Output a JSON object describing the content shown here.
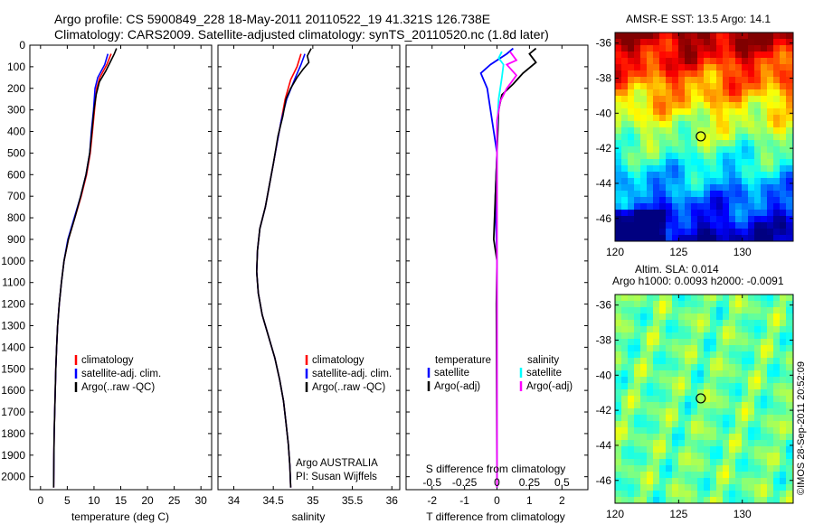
{
  "header": {
    "line1": "Argo profile: CS 5900849_228 18-May-2011 20110522_19 41.321S 126.738E",
    "line2": "Climatology: CARS2009. Satellite-adjusted climatology: synTS_20110520.nc (1.8d later)"
  },
  "colors": {
    "climatology": "#ff0000",
    "satellite": "#0000ff",
    "argo": "#000000",
    "sal_satellite": "#00ffff",
    "sal_argo": "#ff00ff"
  },
  "depth_axis": {
    "ticks": [
      0,
      100,
      200,
      300,
      400,
      500,
      600,
      700,
      800,
      900,
      1000,
      1100,
      1200,
      1300,
      1400,
      1500,
      1600,
      1700,
      1800,
      1900,
      2000
    ],
    "range": [
      0,
      2060
    ]
  },
  "chart_data": [
    {
      "type": "line",
      "xlabel": "temperature (deg C)",
      "xlim": [
        -2,
        32
      ],
      "xticks": [
        0,
        5,
        10,
        15,
        20,
        25,
        30
      ],
      "legend": [
        "climatology",
        "satellite-adj. clim.",
        "Argo(..raw -QC)"
      ],
      "series": [
        {
          "name": "climatology",
          "points": [
            [
              13.2,
              40
            ],
            [
              12.4,
              90
            ],
            [
              11.1,
              150
            ],
            [
              10.5,
              200
            ],
            [
              10.1,
              300
            ],
            [
              9.7,
              400
            ],
            [
              9.3,
              500
            ],
            [
              8.6,
              600
            ],
            [
              7.6,
              700
            ],
            [
              6.4,
              800
            ],
            [
              5.2,
              900
            ],
            [
              4.4,
              1000
            ],
            [
              3.9,
              1100
            ],
            [
              3.5,
              1200
            ],
            [
              3.2,
              1300
            ],
            [
              3.0,
              1400
            ],
            [
              2.85,
              1500
            ],
            [
              2.75,
              1600
            ],
            [
              2.65,
              1700
            ],
            [
              2.55,
              1800
            ],
            [
              2.5,
              1900
            ],
            [
              2.45,
              2050
            ]
          ]
        },
        {
          "name": "satellite-adj. clim.",
          "points": [
            [
              12.6,
              40
            ],
            [
              12.0,
              90
            ],
            [
              10.7,
              150
            ],
            [
              10.2,
              200
            ],
            [
              9.9,
              300
            ],
            [
              9.5,
              400
            ],
            [
              9.2,
              500
            ],
            [
              8.5,
              600
            ],
            [
              7.5,
              700
            ],
            [
              6.3,
              800
            ],
            [
              5.1,
              900
            ],
            [
              4.4,
              1000
            ],
            [
              3.9,
              1100
            ],
            [
              3.5,
              1200
            ],
            [
              3.2,
              1300
            ],
            [
              3.0,
              1400
            ],
            [
              2.85,
              1500
            ],
            [
              2.75,
              1600
            ],
            [
              2.65,
              1700
            ],
            [
              2.55,
              1800
            ],
            [
              2.5,
              1900
            ],
            [
              2.45,
              2050
            ]
          ]
        },
        {
          "name": "Argo(..raw -QC)",
          "points": [
            [
              14.2,
              15
            ],
            [
              13.8,
              40
            ],
            [
              13.0,
              80
            ],
            [
              12.2,
              120
            ],
            [
              11.0,
              170
            ],
            [
              10.4,
              230
            ],
            [
              10.0,
              300
            ],
            [
              9.6,
              400
            ],
            [
              9.2,
              500
            ],
            [
              8.5,
              600
            ],
            [
              7.5,
              700
            ],
            [
              6.4,
              800
            ],
            [
              5.2,
              900
            ],
            [
              4.4,
              1000
            ],
            [
              3.9,
              1100
            ],
            [
              3.5,
              1200
            ],
            [
              3.2,
              1300
            ],
            [
              3.0,
              1400
            ],
            [
              2.85,
              1500
            ],
            [
              2.75,
              1600
            ],
            [
              2.65,
              1700
            ],
            [
              2.55,
              1800
            ],
            [
              2.5,
              1900
            ],
            [
              2.45,
              2050
            ]
          ]
        }
      ]
    },
    {
      "type": "line",
      "xlabel": "salinity",
      "xlim": [
        33.8,
        36.1
      ],
      "xticks": [
        34,
        34.5,
        35,
        35.5,
        36
      ],
      "legend": [
        "climatology",
        "satellite-adj. clim.",
        "Argo(..raw -QC)"
      ],
      "note": [
        "Argo AUSTRALIA",
        "PI: Susan Wijffels"
      ],
      "series": [
        {
          "name": "climatology",
          "points": [
            [
              34.85,
              40
            ],
            [
              34.8,
              100
            ],
            [
              34.72,
              160
            ],
            [
              34.65,
              250
            ],
            [
              34.6,
              350
            ],
            [
              34.55,
              450
            ],
            [
              34.5,
              550
            ],
            [
              34.45,
              650
            ],
            [
              34.4,
              750
            ],
            [
              34.33,
              850
            ],
            [
              34.3,
              950
            ],
            [
              34.29,
              1050
            ],
            [
              34.31,
              1150
            ],
            [
              34.36,
              1250
            ],
            [
              34.44,
              1350
            ],
            [
              34.52,
              1450
            ],
            [
              34.58,
              1550
            ],
            [
              34.63,
              1650
            ],
            [
              34.66,
              1750
            ],
            [
              34.69,
              1850
            ],
            [
              34.71,
              1950
            ],
            [
              34.72,
              2050
            ]
          ]
        },
        {
          "name": "satellite-adj. clim.",
          "points": [
            [
              34.9,
              40
            ],
            [
              34.85,
              90
            ],
            [
              34.78,
              150
            ],
            [
              34.67,
              250
            ],
            [
              34.6,
              350
            ],
            [
              34.55,
              450
            ],
            [
              34.5,
              550
            ],
            [
              34.45,
              650
            ],
            [
              34.4,
              750
            ],
            [
              34.33,
              850
            ],
            [
              34.3,
              950
            ],
            [
              34.29,
              1050
            ],
            [
              34.31,
              1150
            ],
            [
              34.36,
              1250
            ],
            [
              34.44,
              1350
            ],
            [
              34.52,
              1450
            ],
            [
              34.58,
              1550
            ],
            [
              34.63,
              1650
            ],
            [
              34.66,
              1750
            ],
            [
              34.69,
              1850
            ],
            [
              34.71,
              1950
            ],
            [
              34.72,
              2050
            ]
          ]
        },
        {
          "name": "Argo(..raw -QC)",
          "points": [
            [
              34.98,
              15
            ],
            [
              34.93,
              50
            ],
            [
              34.95,
              80
            ],
            [
              34.88,
              110
            ],
            [
              34.8,
              150
            ],
            [
              34.72,
              200
            ],
            [
              34.66,
              250
            ],
            [
              34.62,
              330
            ],
            [
              34.56,
              420
            ],
            [
              34.5,
              550
            ],
            [
              34.45,
              650
            ],
            [
              34.4,
              750
            ],
            [
              34.33,
              850
            ],
            [
              34.3,
              950
            ],
            [
              34.29,
              1050
            ],
            [
              34.31,
              1150
            ],
            [
              34.36,
              1250
            ],
            [
              34.44,
              1350
            ],
            [
              34.52,
              1450
            ],
            [
              34.58,
              1550
            ],
            [
              34.63,
              1650
            ],
            [
              34.66,
              1750
            ],
            [
              34.69,
              1850
            ],
            [
              34.71,
              1950
            ],
            [
              34.72,
              2050
            ]
          ]
        }
      ]
    },
    {
      "type": "line",
      "xlabel": "T difference from climatology",
      "xlabel_top": "S difference from climatology",
      "xlim": [
        -2.8,
        2.8
      ],
      "xticks": [
        -2,
        -1,
        0,
        1,
        2
      ],
      "xticks_top": [
        "-0.5",
        "-0.25",
        "0",
        "0.25",
        "0.5"
      ],
      "legend_left_title": "temperature",
      "legend_left": [
        "satellite",
        "Argo(-adj)"
      ],
      "legend_right_title": "salinity",
      "legend_right": [
        "satellite",
        "Argo(-adj)"
      ],
      "series": [
        {
          "name": "temperature satellite",
          "points": [
            [
              0.5,
              15
            ],
            [
              0.3,
              40
            ],
            [
              -0.2,
              90
            ],
            [
              -0.5,
              130
            ],
            [
              -0.3,
              200
            ],
            [
              -0.15,
              350
            ],
            [
              0.0,
              500
            ],
            [
              -0.05,
              700
            ],
            [
              0.0,
              1000
            ],
            [
              0.0,
              2050
            ]
          ]
        },
        {
          "name": "temperature Argo(-adj)",
          "points": [
            [
              1.2,
              15
            ],
            [
              1.0,
              40
            ],
            [
              1.2,
              80
            ],
            [
              0.8,
              130
            ],
            [
              0.5,
              180
            ],
            [
              0.15,
              230
            ],
            [
              0.05,
              300
            ],
            [
              0.0,
              500
            ],
            [
              -0.05,
              700
            ],
            [
              -0.1,
              900
            ],
            [
              0.0,
              1000
            ],
            [
              -0.02,
              1200
            ],
            [
              0.0,
              2050
            ]
          ]
        },
        {
          "name": "salinity satellite",
          "points": [
            [
              0.15,
              30
            ],
            [
              0.05,
              60
            ],
            [
              0.2,
              90
            ],
            [
              0.15,
              150
            ],
            [
              0.05,
              250
            ],
            [
              0.0,
              400
            ],
            [
              0.0,
              2050
            ]
          ]
        },
        {
          "name": "salinity Argo(-adj)",
          "points": [
            [
              0.4,
              30
            ],
            [
              0.6,
              70
            ],
            [
              0.3,
              90
            ],
            [
              0.6,
              140
            ],
            [
              0.3,
              200
            ],
            [
              0.1,
              260
            ],
            [
              0.0,
              350
            ],
            [
              0.0,
              2050
            ]
          ]
        }
      ]
    },
    {
      "type": "heatmap",
      "title": "AMSR-E SST: 13.5 Argo: 14.1",
      "xlim": [
        120,
        134
      ],
      "ylim": [
        -47.3,
        -35.4
      ],
      "xticks": [
        120,
        125,
        130
      ],
      "yticks": [
        -36,
        -38,
        -40,
        -42,
        -44,
        -46
      ],
      "marker": {
        "lon": 126.738,
        "lat": -41.321
      }
    },
    {
      "type": "heatmap",
      "title": "Altim. SLA: 0.014",
      "subtitle": "Argo h1000: 0.0093 h2000: -0.0091",
      "xlim": [
        120,
        134
      ],
      "ylim": [
        -47.3,
        -35.4
      ],
      "xticks": [
        120,
        125,
        130
      ],
      "yticks": [
        -36,
        -38,
        -40,
        -42,
        -44,
        -46
      ],
      "marker": {
        "lon": 126.738,
        "lat": -41.321
      }
    }
  ],
  "footer_stamp": "©IMOS 28-Sep-2011 20:52:09"
}
